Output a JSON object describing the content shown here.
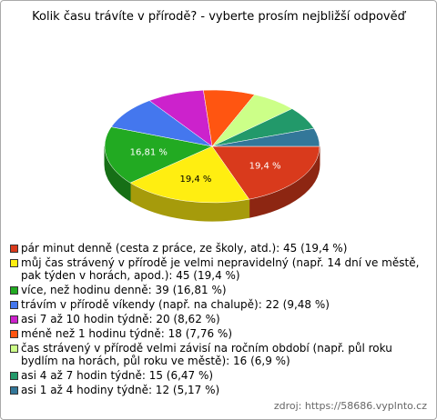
{
  "chart_data": {
    "type": "pie",
    "title": "Kolik času trávíte v přírodě? - vyberte prosím nejbližší odpověď",
    "categories": [
      "pár minut denně (cesta z práce, ze školy, atd.): 45 (19,4 %)",
      "můj čas strávený v přírodě je velmi nepravidelný (např. 14 dní ve městě, pak týden v horách, apod.): 45 (19,4 %)",
      "více, než hodinu denně: 39 (16,81 %)",
      "trávím v přírodě víkendy (např. na chalupě): 22 (9,48 %)",
      "asi 7 až 10 hodin týdně: 20 (8,62 %)",
      "méně než 1 hodinu týdně: 18 (7,76 %)",
      "čas strávený v přírodě velmi závisí na ročním období (např. půl roku bydlím na horách, půl roku ve městě): 16 (6,9 %)",
      "asi 4 až 7 hodin týdně: 15 (6,47 %)",
      "asi 1 až 4 hodiny týdně: 12 (5,17 %)"
    ],
    "values": [
      19.4,
      19.4,
      16.81,
      9.48,
      8.62,
      7.76,
      6.9,
      6.47,
      5.17
    ],
    "value_labels": [
      "19,4 %",
      "19,4 %",
      "16,81 %",
      null,
      null,
      null,
      null,
      null,
      null
    ],
    "colors": [
      "#d93a1c",
      "#ffee11",
      "#22aa22",
      "#4477ee",
      "#cc22cc",
      "#ff5511",
      "#ccff88",
      "#22996a",
      "#337799"
    ],
    "source": "zdroj: https://58686.vyplnto.cz"
  }
}
